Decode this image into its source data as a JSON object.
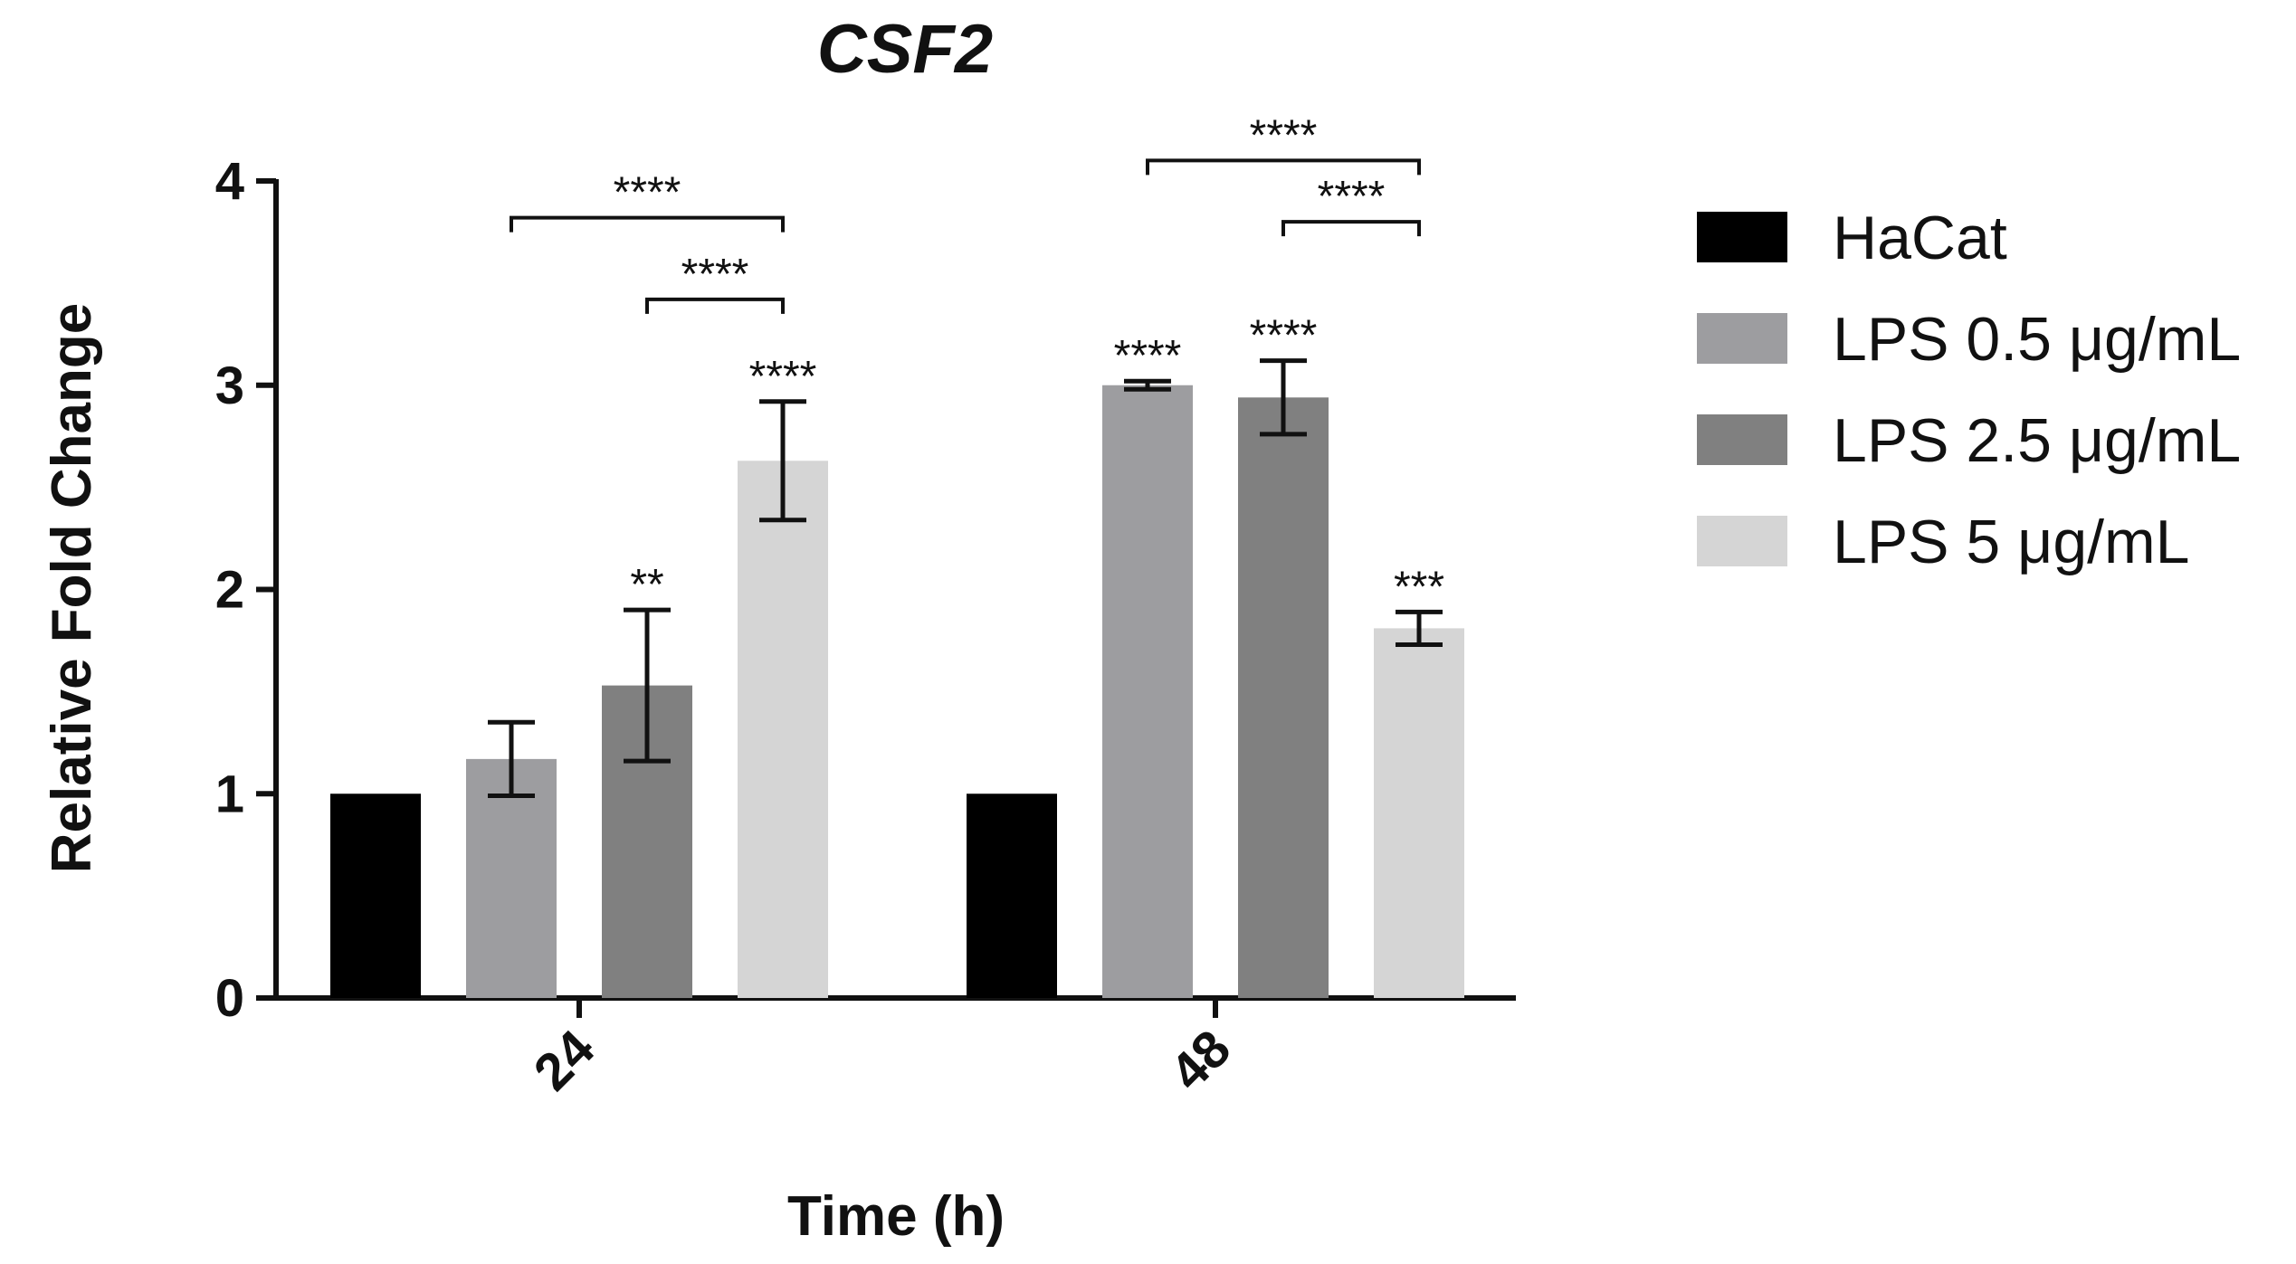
{
  "chart_data": {
    "type": "bar",
    "title": "CSF2",
    "xlabel": "Time  (h)",
    "ylabel": "Relative Fold Change",
    "ylim": [
      0,
      4
    ],
    "yticks": [
      "0",
      "1",
      "2",
      "3",
      "4"
    ],
    "categories": [
      "24",
      "48"
    ],
    "series": [
      {
        "name": "HaCat",
        "color": "#000000",
        "values": [
          1.0,
          1.0
        ],
        "errors": [
          0,
          0
        ],
        "sig": [
          "",
          ""
        ]
      },
      {
        "name": "LPS 0.5 μg/mL",
        "color": "#9d9da0",
        "values": [
          1.17,
          3.0
        ],
        "errors": [
          0.18,
          0.02
        ],
        "sig": [
          "",
          "****"
        ]
      },
      {
        "name": "LPS 2.5 μg/mL",
        "color": "#808080",
        "values": [
          1.53,
          2.94
        ],
        "errors": [
          0.37,
          0.18
        ],
        "sig": [
          "**",
          "****"
        ]
      },
      {
        "name": "LPS 5 μg/mL",
        "color": "#d5d5d5",
        "values": [
          2.63,
          1.81
        ],
        "errors": [
          0.29,
          0.08
        ],
        "sig": [
          "****",
          "***"
        ]
      }
    ],
    "comparisons": [
      {
        "category": 0,
        "from": 1,
        "to": 3,
        "y": 3.82,
        "label": "****"
      },
      {
        "category": 0,
        "from": 2,
        "to": 3,
        "y": 3.42,
        "label": "****"
      },
      {
        "category": 1,
        "from": 1,
        "to": 3,
        "y": 4.1,
        "label": "****"
      },
      {
        "category": 1,
        "from": 2,
        "to": 3,
        "y": 3.8,
        "label": "****"
      }
    ]
  }
}
